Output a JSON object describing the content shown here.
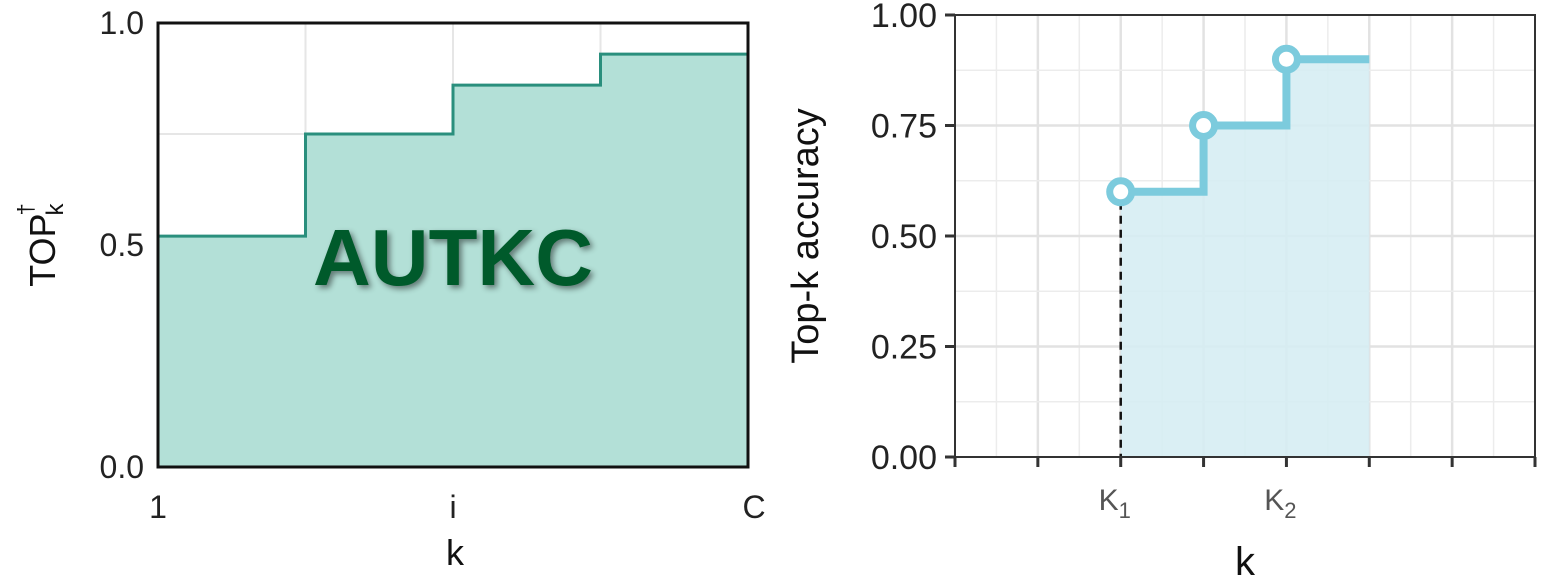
{
  "chart_data": [
    {
      "type": "area",
      "step": true,
      "xlabel": "k",
      "ylabel": "TOP",
      "ylabel_superscript": "†",
      "ylabel_subscript": "k",
      "ylim": [
        0,
        1
      ],
      "y_ticks": [
        "0.0",
        "0.5",
        "1.0"
      ],
      "x_tick_labels": [
        "1",
        "i",
        "C"
      ],
      "annotation": "AUTKC",
      "grid": true,
      "fill_color": "#b3e0d7",
      "line_color": "#2a8f7d",
      "annotation_color": "#005a2b",
      "steps": [
        {
          "x_start": 0.0,
          "x_end": 1.0,
          "y": 0.52
        },
        {
          "x_start": 1.0,
          "x_end": 2.0,
          "y": 0.75
        },
        {
          "x_start": 2.0,
          "x_end": 3.0,
          "y": 0.86
        },
        {
          "x_start": 3.0,
          "x_end": 4.0,
          "y": 0.93
        }
      ]
    },
    {
      "type": "line",
      "step": true,
      "xlabel": "k",
      "ylabel": "Top-k accuracy",
      "ylim": [
        0,
        1
      ],
      "y_ticks": [
        "0.00",
        "0.25",
        "0.50",
        "0.75",
        "1.00"
      ],
      "x_tick_labels": [
        {
          "base": "K",
          "sub": "1",
          "x": 2
        },
        {
          "base": "K",
          "sub": "2",
          "x": 4
        }
      ],
      "grid": true,
      "line_color": "#7ccbdd",
      "fill_color": "#d6edf3",
      "x": [
        2,
        3,
        4,
        5
      ],
      "y": [
        0.6,
        0.75,
        0.9,
        0.9
      ],
      "open_markers_at": [
        2,
        3,
        4
      ],
      "dashed_drop_at": 2
    }
  ]
}
